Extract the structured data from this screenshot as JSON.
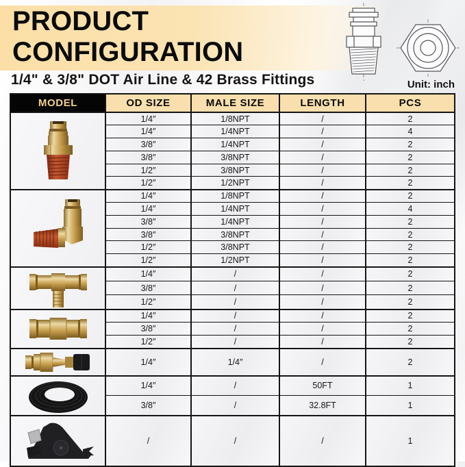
{
  "header": {
    "title": "PRODUCT CONFIGURATION",
    "subtitle": "1/4\" & 3/8\" DOT Air Line & 42 Brass Fittings",
    "unit_label": "Unit: inch",
    "drawings": [
      "fitting-side-view-drawing",
      "fitting-hex-front-drawing"
    ]
  },
  "colors": {
    "band": "#fbdfa6",
    "table_header_bg": "#f8dfad",
    "model_header_bg": "#050505",
    "model_header_text": "#f2d08c",
    "brass": "#c79e4e",
    "thread_red": "#a63f24"
  },
  "table": {
    "columns": [
      "MODEL",
      "OD SIZE",
      "MALE SIZE",
      "LENGTH",
      "PCS"
    ],
    "groups": [
      {
        "image": "straight-male-connector",
        "rows": [
          {
            "od": "1/4″",
            "male": "1/8NPT",
            "length": "/",
            "pcs": "2"
          },
          {
            "od": "1/4″",
            "male": "1/4NPT",
            "length": "/",
            "pcs": "4"
          },
          {
            "od": "3/8″",
            "male": "1/4NPT",
            "length": "/",
            "pcs": "2"
          },
          {
            "od": "3/8″",
            "male": "3/8NPT",
            "length": "/",
            "pcs": "2"
          },
          {
            "od": "1/2″",
            "male": "3/8NPT",
            "length": "/",
            "pcs": "2"
          },
          {
            "od": "1/2″",
            "male": "1/2NPT",
            "length": "/",
            "pcs": "2"
          }
        ]
      },
      {
        "image": "male-elbow-connector",
        "rows": [
          {
            "od": "1/4″",
            "male": "1/8NPT",
            "length": "/",
            "pcs": "2"
          },
          {
            "od": "1/4″",
            "male": "1/4NPT",
            "length": "/",
            "pcs": "4"
          },
          {
            "od": "3/8″",
            "male": "1/4NPT",
            "length": "/",
            "pcs": "2"
          },
          {
            "od": "3/8″",
            "male": "3/8NPT",
            "length": "/",
            "pcs": "2"
          },
          {
            "od": "1/2″",
            "male": "3/8NPT",
            "length": "/",
            "pcs": "2"
          },
          {
            "od": "1/2″",
            "male": "1/2NPT",
            "length": "/",
            "pcs": "2"
          }
        ]
      },
      {
        "image": "tee-union",
        "rows": [
          {
            "od": "1/4″",
            "male": "/",
            "length": "/",
            "pcs": "2"
          },
          {
            "od": "3/8″",
            "male": "/",
            "length": "/",
            "pcs": "2"
          },
          {
            "od": "1/2″",
            "male": "/",
            "length": "/",
            "pcs": "2"
          }
        ]
      },
      {
        "image": "straight-union",
        "rows": [
          {
            "od": "1/4″",
            "male": "/",
            "length": "/",
            "pcs": "2"
          },
          {
            "od": "3/8″",
            "male": "/",
            "length": "/",
            "pcs": "2"
          },
          {
            "od": "1/2″",
            "male": "/",
            "length": "/",
            "pcs": "2"
          }
        ]
      },
      {
        "image": "inflation-valve",
        "rows": [
          {
            "od": "1/4″",
            "male": "1/4″",
            "length": "/",
            "pcs": "2"
          }
        ]
      },
      {
        "image": "air-line-coil",
        "rows": [
          {
            "od": "1/4″",
            "male": "/",
            "length": "50FT",
            "pcs": "1"
          },
          {
            "od": "3/8″",
            "male": "/",
            "length": "32.8FT",
            "pcs": "1"
          }
        ]
      },
      {
        "image": "tube-cutter",
        "rows": [
          {
            "od": "/",
            "male": "/",
            "length": "/",
            "pcs": "1"
          }
        ]
      }
    ]
  }
}
